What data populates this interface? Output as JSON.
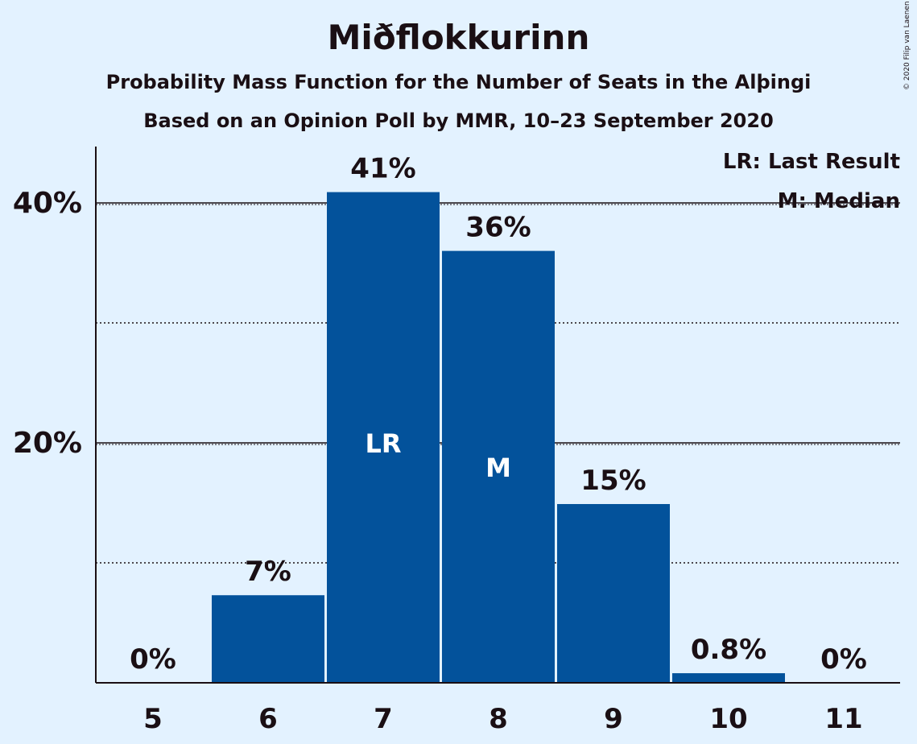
{
  "title": "Miðflokkurinn",
  "subtitle": "Probability Mass Function for the Number of Seats in the Alþingi",
  "subtitle2": "Based on an Opinion Poll by MMR, 10–23 September 2020",
  "copyright": "© 2020 Filip van Laenen",
  "legend": {
    "last_result": "LR: Last Result",
    "median": "M: Median"
  },
  "colors": {
    "background": "#e3f2ff",
    "bar": "#03529b",
    "text": "#1a0f14"
  },
  "chart_data": {
    "type": "bar",
    "categories": [
      "5",
      "6",
      "7",
      "8",
      "9",
      "10",
      "11"
    ],
    "values": [
      0,
      7.3,
      40.9,
      36.0,
      14.9,
      0.8,
      0
    ],
    "value_labels": [
      "0%",
      "7%",
      "41%",
      "36%",
      "15%",
      "0.8%",
      "0%"
    ],
    "bar_markers": [
      "",
      "",
      "LR",
      "M",
      "",
      "",
      ""
    ],
    "ylim": [
      0,
      45
    ],
    "yticks": [
      20,
      40
    ],
    "ytick_labels": [
      "20%",
      "40%"
    ],
    "minor_gridlines": [
      10,
      30
    ],
    "xlabel": "",
    "ylabel": "",
    "grid": true,
    "legend_position": "top-right"
  }
}
